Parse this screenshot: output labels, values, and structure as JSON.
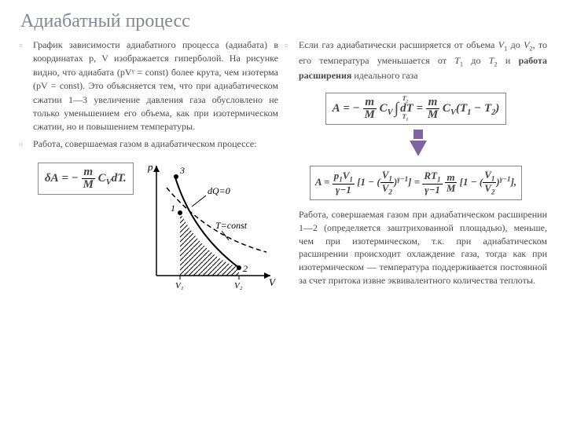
{
  "title": "Адиабатный процесс",
  "left": {
    "p1": "График зависимости адиабатного процесса (адиабата) в координатах p, V изображается гиперболой. На рисунке видно, что адиабата (pVᵞ = const) более крута, чем изотерма (pV = const). Это объясняется тем, что при адиабатическом сжатии 1—3 увеличение давления газа обусловлено не только уменьшением его объема, как при изотермическом сжатии, но и повышением температуры.",
    "p2": "Работа, совершаемая газом в адиабатическом процессе:",
    "formula1_html": "δA&nbsp;=&nbsp;−&nbsp;<span class='frac'><span class='num'>m</span><span class='den'>M</span></span>&nbsp;C<sub>V</sub>dT."
  },
  "right": {
    "p1_html": "Если газ адиабатически расширяется от объема <i>V</i><sub>1</sub> до <i>V</i><sub>2</sub>, то его температура уменьшается от <i>T</i><sub>1</sub> до <i>T</i><sub>2</sub> и <b>работа расширения</b> идеального газа",
    "formula2_html": "A&nbsp;=&nbsp;−&nbsp;<span class='frac'><span class='num'>m</span><span class='den'>M</span></span>&nbsp;C<sub>V</sub><span class='int'>∫<span class='lb'>T<sub>1</sub></span><span class='ub'>T<sub>2</sub></span></span>dT&nbsp;=&nbsp;<span class='frac'><span class='num'>m</span><span class='den'>M</span></span>&nbsp;C<sub>V</sub>(T<sub>1</sub>&nbsp;−&nbsp;T<sub>2</sub>)",
    "formula3_html": "A = <span class='frac'><span class='num'>p<sub>1</sub>V<sub>1</sub></span><span class='den'>γ−1</span></span>&nbsp;[1 − (<span class='frac'><span class='num'>V<sub>1</sub></span><span class='den'>V<sub>2</sub></span></span>)<sup>γ−1</sup>] = <span class='frac'><span class='num'>RT<sub>1</sub></span><span class='den'>γ−1</span></span>&nbsp;<span class='frac'><span class='num'>m</span><span class='den'>M</span></span>&nbsp;[1 − (<span class='frac'><span class='num'>V<sub>1</sub></span><span class='den'>V<sub>2</sub></span></span>)<sup>γ−1</sup>],",
    "p2": "Работа, совершаемая газом при адиабатическом расширении 1—2 (определяется заштрихованной площадью), меньше, чем при изотермическом, т.к. при адиабатическом расширении происходит охлаждение газа, тогда как при изотермическом — температура поддерживается постоянной за счет притока извне эквивалентного количества теплоты."
  },
  "graph": {
    "x_label": "V",
    "y_label": "p",
    "ticks_x": [
      "V₁",
      "V₂"
    ],
    "annot_dq": "dQ=0",
    "annot_t": "T=const",
    "pts": [
      "1",
      "2",
      "3"
    ],
    "colors": {
      "axis": "#000000",
      "adiabat": "#000000",
      "isotherm": "#000000",
      "hatch": "#000000"
    }
  }
}
